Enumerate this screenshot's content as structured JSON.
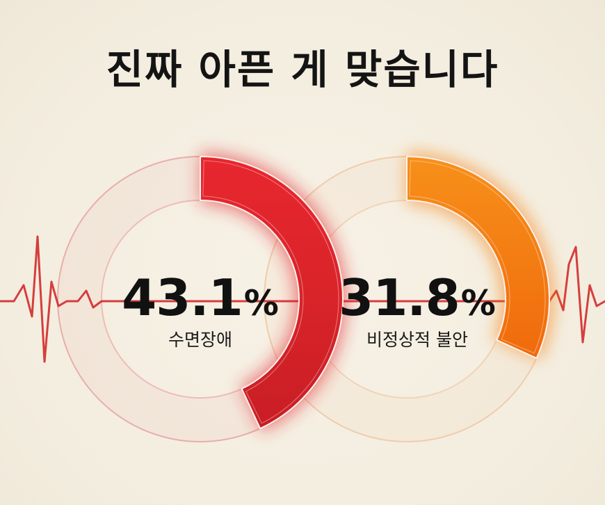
{
  "title": "진짜 아픈 게 맞습니다",
  "chart_data": {
    "type": "pie",
    "charts": [
      {
        "label": "수면장애",
        "value": 43.1,
        "unit": "%",
        "color": "#e0242c"
      },
      {
        "label": "비정상적 불안",
        "value": 31.8,
        "unit": "%",
        "color": "#f47a10"
      }
    ]
  },
  "colors": {
    "background": "#f5f0e4",
    "pulse_line": "#d12a2a",
    "text": "#111111"
  }
}
